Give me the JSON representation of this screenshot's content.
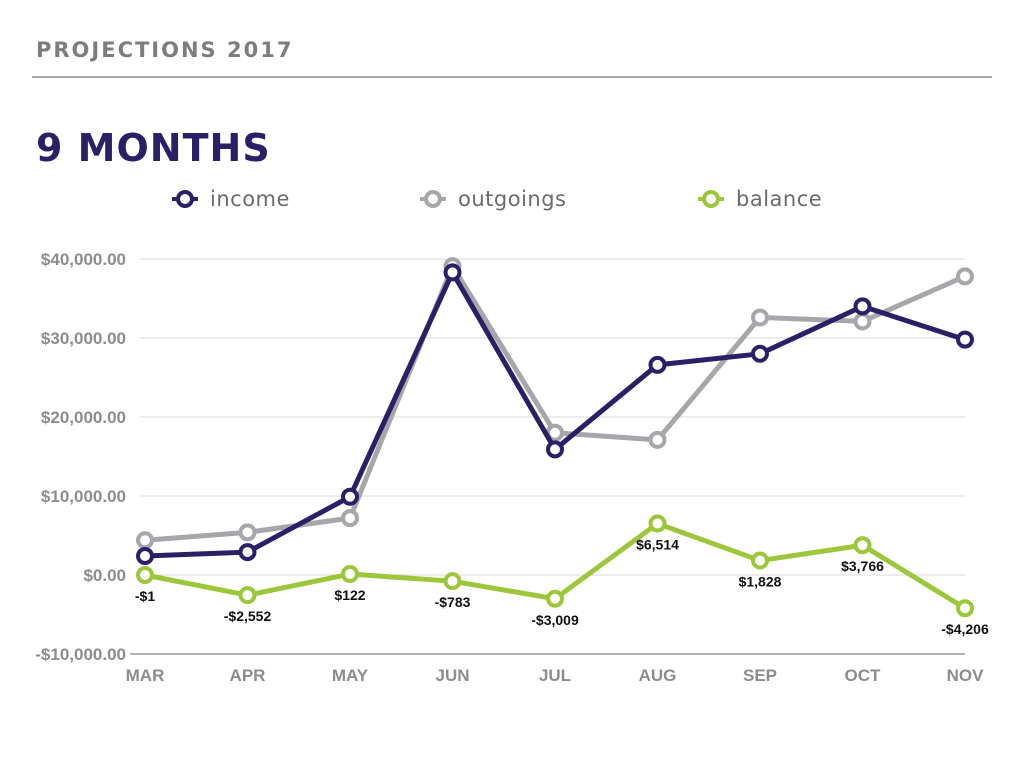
{
  "header": {
    "title": "PROJECTIONS 2017"
  },
  "chart_data": {
    "type": "line",
    "title": "9 MONTHS",
    "xlabel": "",
    "ylabel": "",
    "categories": [
      "MAR",
      "APR",
      "MAY",
      "JUN",
      "JUL",
      "AUG",
      "SEP",
      "OCT",
      "NOV"
    ],
    "ylim": [
      -10000,
      40000
    ],
    "yticks": [
      -10000,
      0,
      10000,
      20000,
      30000,
      40000
    ],
    "ytick_labels": [
      "-$10,000.00",
      "$0.00",
      "$10,000.00",
      "$20,000.00",
      "$30,000.00",
      "$40,000.00"
    ],
    "grid": true,
    "legend_position": "top",
    "series": [
      {
        "name": "outgoings",
        "color": "#a7a7ab",
        "values": [
          4400,
          5400,
          7200,
          39100,
          18000,
          17100,
          32600,
          32100,
          37800
        ]
      },
      {
        "name": "income",
        "color": "#2b2066",
        "values": [
          2400,
          2900,
          9900,
          38300,
          15900,
          26600,
          28000,
          34000,
          29800
        ]
      },
      {
        "name": "balance",
        "color": "#9dc73b",
        "values": [
          -1,
          -2552,
          122,
          -783,
          -3009,
          6514,
          1828,
          3766,
          -4206
        ],
        "labels": [
          "-$1",
          "-$2,552",
          "$122",
          "-$783",
          "-$3,009",
          "$6,514",
          "$1,828",
          "$3,766",
          "-$4,206"
        ]
      }
    ],
    "legend": [
      "income",
      "outgoings",
      "balance"
    ]
  }
}
